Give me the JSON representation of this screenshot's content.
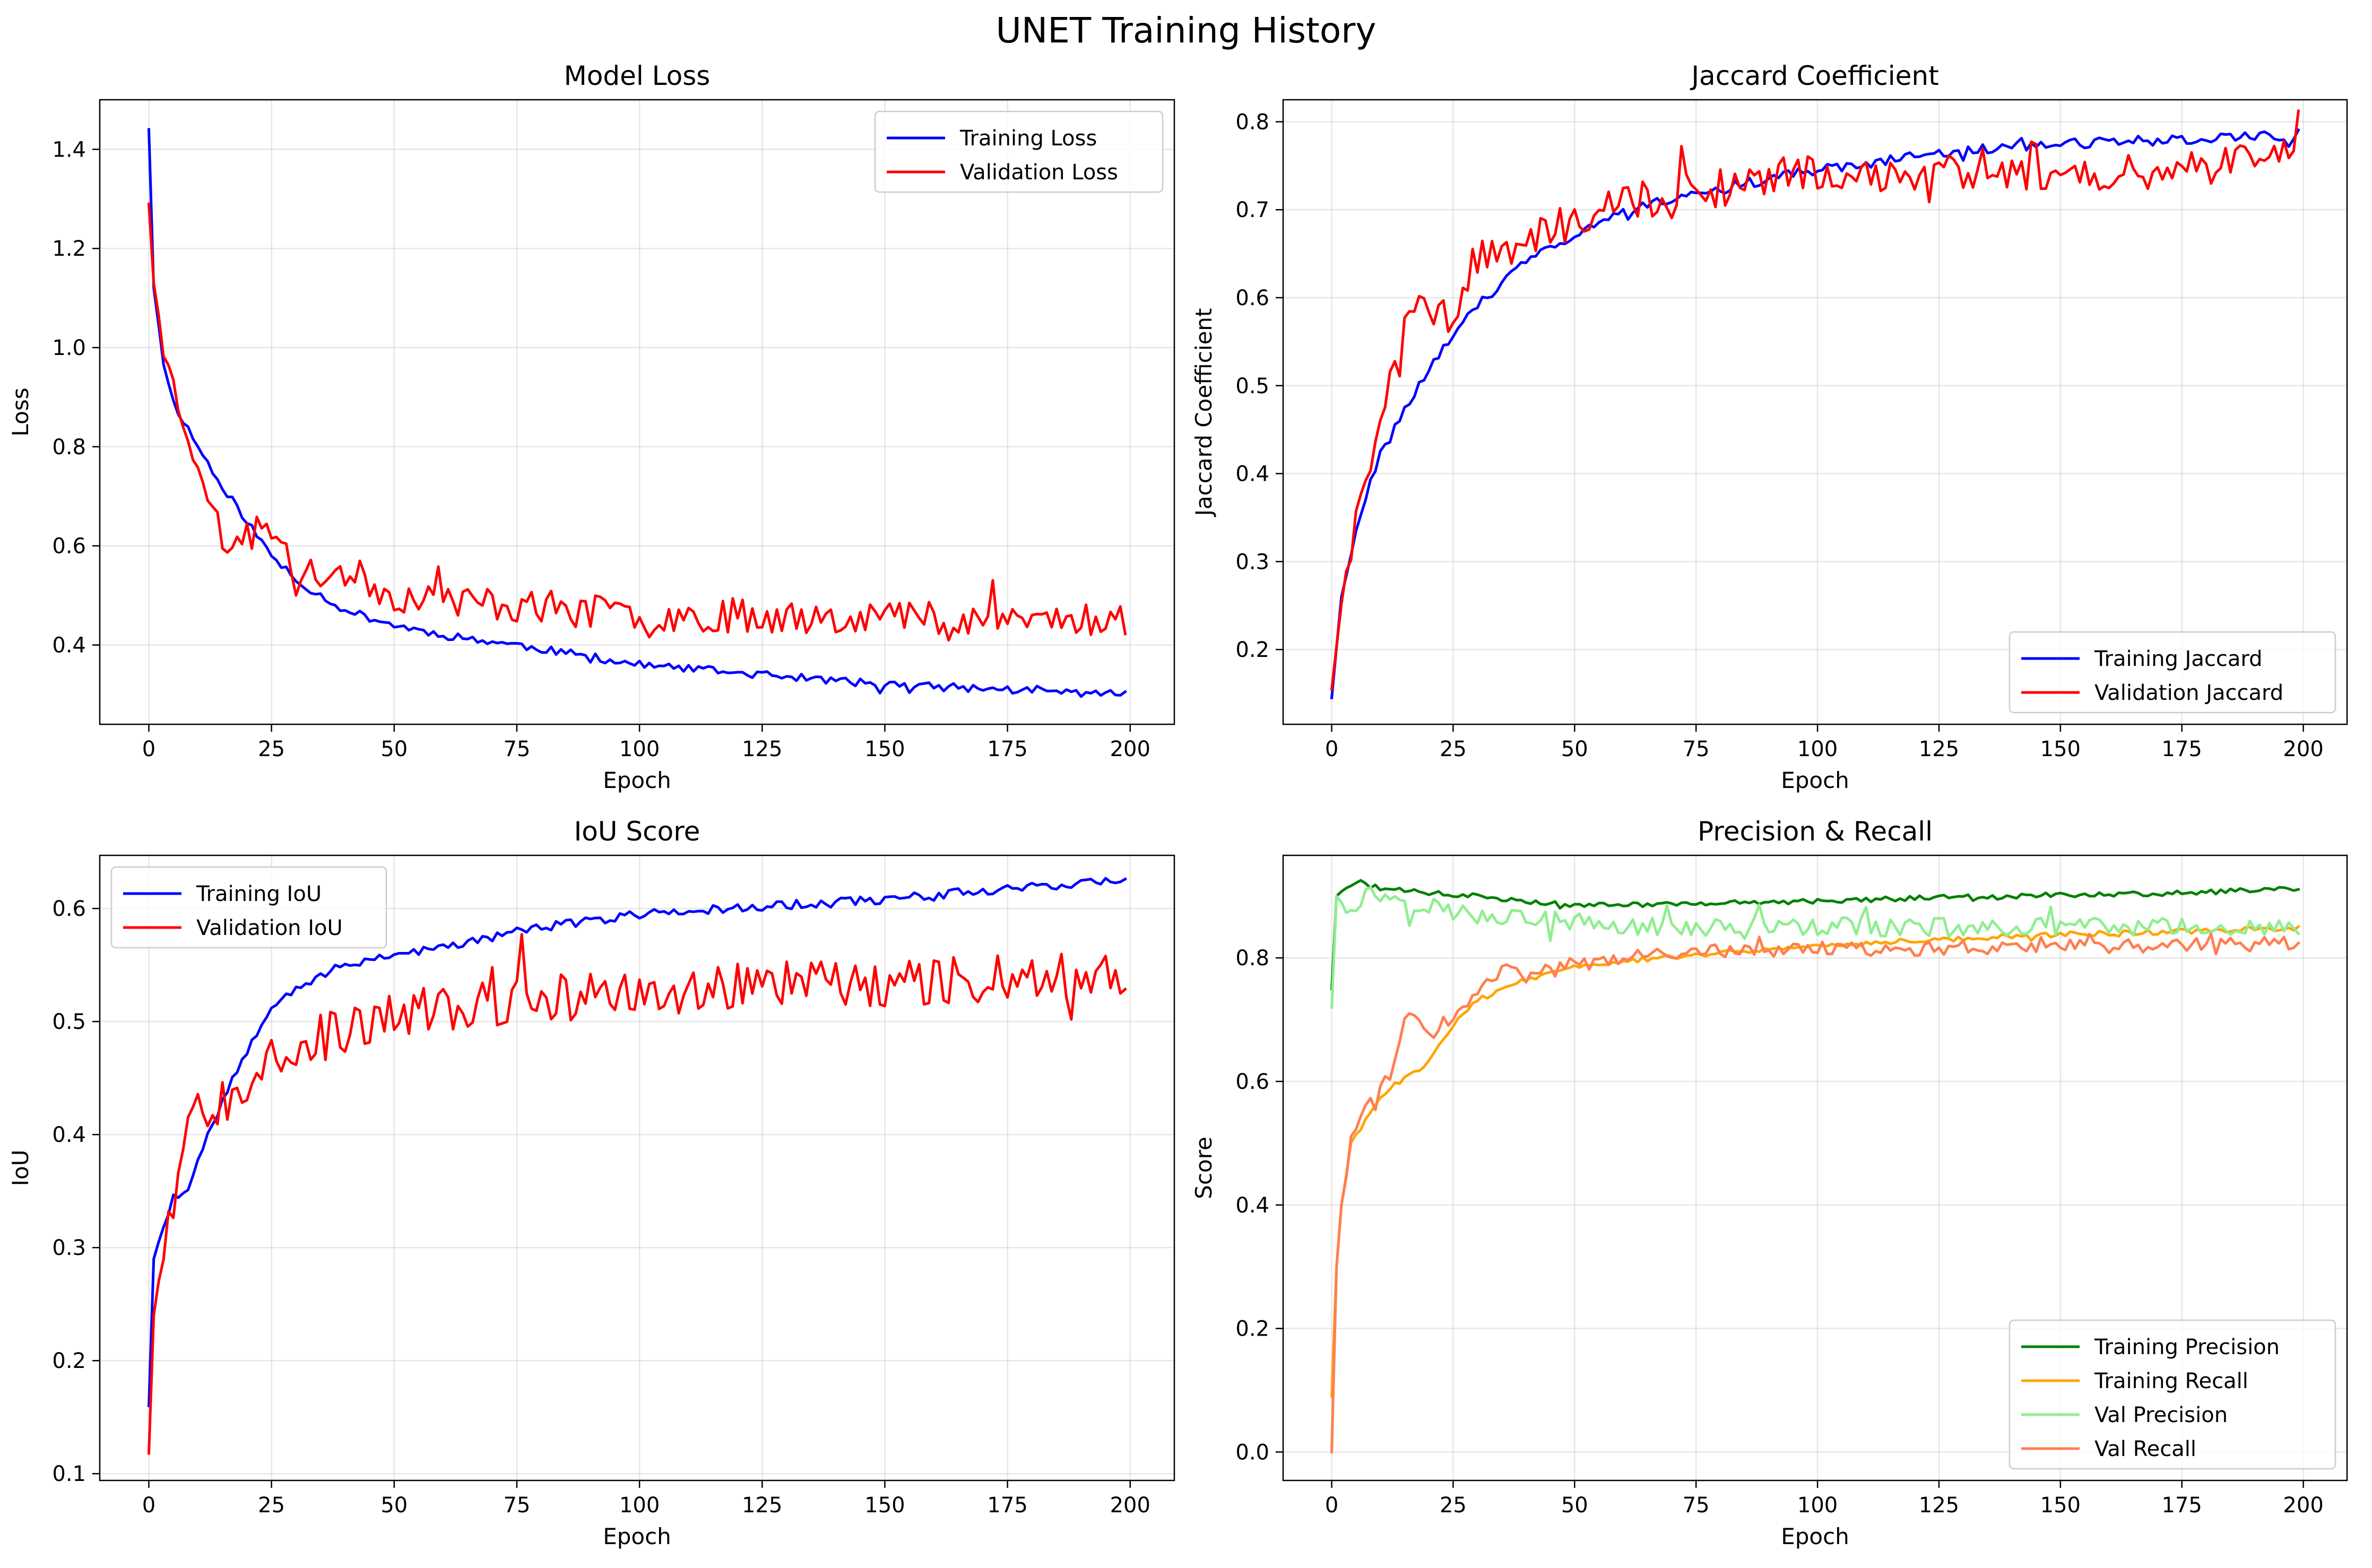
{
  "figure": {
    "suptitle": "UNET Training History"
  },
  "chart_data": [
    {
      "type": "line",
      "title": "Model Loss",
      "xlabel": "Epoch",
      "ylabel": "Loss",
      "xlim": [
        -10,
        209
      ],
      "ylim": [
        0.24,
        1.5
      ],
      "xticks": [
        0,
        25,
        50,
        75,
        100,
        125,
        150,
        175,
        200
      ],
      "xtick_labels": [
        "0",
        "25",
        "50",
        "75",
        "100",
        "125",
        "150",
        "175",
        "200"
      ],
      "yticks": [
        0.4,
        0.6,
        0.8,
        1.0,
        1.2,
        1.4
      ],
      "ytick_labels": [
        "0.4",
        "0.6",
        "0.8",
        "1.0",
        "1.2",
        "1.4"
      ],
      "grid": true,
      "legend_position": "upper-right",
      "series": [
        {
          "name": "Training Loss",
          "color": "#0000ff",
          "gen": {
            "kind": "dec",
            "start": 1.44,
            "end": 0.29,
            "tau": 9,
            "drift": -0.06,
            "noise": 0.008,
            "seed": 11
          },
          "anchors": [
            [
              0,
              1.44
            ],
            [
              1,
              1.12
            ],
            [
              3,
              0.97
            ],
            [
              5,
              0.89
            ],
            [
              10,
              0.8
            ],
            [
              15,
              0.72
            ],
            [
              20,
              0.65
            ],
            [
              25,
              0.58
            ],
            [
              30,
              0.53
            ],
            [
              40,
              0.47
            ],
            [
              50,
              0.44
            ],
            [
              60,
              0.42
            ],
            [
              75,
              0.4
            ],
            [
              100,
              0.36
            ],
            [
              125,
              0.34
            ],
            [
              150,
              0.32
            ],
            [
              175,
              0.31
            ],
            [
              199,
              0.3
            ]
          ]
        },
        {
          "name": "Validation Loss",
          "color": "#ff0000",
          "gen": {
            "kind": "dec",
            "start": 1.29,
            "end": 0.46,
            "tau": 8,
            "drift": 0.0,
            "noise": 0.035,
            "seed": 23
          },
          "anchors": [
            [
              0,
              1.29
            ],
            [
              1,
              1.13
            ],
            [
              3,
              1.0
            ],
            [
              5,
              0.92
            ],
            [
              8,
              0.83
            ],
            [
              12,
              0.72
            ],
            [
              15,
              0.6
            ],
            [
              20,
              0.62
            ],
            [
              25,
              0.64
            ],
            [
              30,
              0.53
            ],
            [
              40,
              0.55
            ],
            [
              50,
              0.5
            ],
            [
              75,
              0.48
            ],
            [
              100,
              0.46
            ],
            [
              150,
              0.46
            ],
            [
              199,
              0.45
            ]
          ]
        }
      ]
    },
    {
      "type": "line",
      "title": "Jaccard Coefficient",
      "xlabel": "Epoch",
      "ylabel": "Jaccard Coefficient",
      "xlim": [
        -10,
        209
      ],
      "ylim": [
        0.115,
        0.825
      ],
      "xticks": [
        0,
        25,
        50,
        75,
        100,
        125,
        150,
        175,
        200
      ],
      "xtick_labels": [
        "0",
        "25",
        "50",
        "75",
        "100",
        "125",
        "150",
        "175",
        "200"
      ],
      "yticks": [
        0.2,
        0.3,
        0.4,
        0.5,
        0.6,
        0.7,
        0.8
      ],
      "ytick_labels": [
        "0.2",
        "0.3",
        "0.4",
        "0.5",
        "0.6",
        "0.7",
        "0.8"
      ],
      "grid": true,
      "legend_position": "lower-right",
      "series": [
        {
          "name": "Training Jaccard",
          "color": "#0000ff",
          "gen": {
            "kind": "inc",
            "start": 0.145,
            "end": 0.79,
            "tau": 28,
            "drift": 0.02,
            "noise": 0.006,
            "seed": 31
          },
          "anchors": [
            [
              0,
              0.145
            ],
            [
              2,
              0.26
            ],
            [
              5,
              0.34
            ],
            [
              10,
              0.42
            ],
            [
              15,
              0.47
            ],
            [
              20,
              0.52
            ],
            [
              25,
              0.56
            ],
            [
              30,
              0.59
            ],
            [
              40,
              0.64
            ],
            [
              50,
              0.67
            ],
            [
              60,
              0.7
            ],
            [
              75,
              0.72
            ],
            [
              100,
              0.745
            ],
            [
              125,
              0.765
            ],
            [
              150,
              0.775
            ],
            [
              175,
              0.78
            ],
            [
              199,
              0.785
            ]
          ]
        },
        {
          "name": "Validation Jaccard",
          "color": "#ff0000",
          "gen": {
            "kind": "inc",
            "start": 0.155,
            "end": 0.75,
            "tau": 26,
            "drift": 0.0,
            "noise": 0.022,
            "seed": 47
          },
          "anchors": [
            [
              0,
              0.155
            ],
            [
              3,
              0.3
            ],
            [
              8,
              0.42
            ],
            [
              12,
              0.48
            ],
            [
              16,
              0.6
            ],
            [
              20,
              0.57
            ],
            [
              25,
              0.58
            ],
            [
              30,
              0.65
            ],
            [
              40,
              0.66
            ],
            [
              50,
              0.69
            ],
            [
              60,
              0.71
            ],
            [
              75,
              0.72
            ],
            [
              100,
              0.745
            ],
            [
              125,
              0.74
            ],
            [
              150,
              0.745
            ],
            [
              175,
              0.745
            ],
            [
              199,
              0.77
            ]
          ]
        }
      ]
    },
    {
      "type": "line",
      "title": "IoU Score",
      "xlabel": "Epoch",
      "ylabel": "IoU",
      "xlim": [
        -10,
        209
      ],
      "ylim": [
        0.094,
        0.647
      ],
      "xticks": [
        0,
        25,
        50,
        75,
        100,
        125,
        150,
        175,
        200
      ],
      "xtick_labels": [
        "0",
        "25",
        "50",
        "75",
        "100",
        "125",
        "150",
        "175",
        "200"
      ],
      "yticks": [
        0.1,
        0.2,
        0.3,
        0.4,
        0.5,
        0.6
      ],
      "ytick_labels": [
        "0.1",
        "0.2",
        "0.3",
        "0.4",
        "0.5",
        "0.6"
      ],
      "grid": true,
      "legend_position": "upper-left",
      "series": [
        {
          "name": "Training IoU",
          "color": "#0000ff",
          "gen": {
            "kind": "inc",
            "start": 0.16,
            "end": 0.625,
            "tau": 30,
            "drift": 0.03,
            "noise": 0.004,
            "seed": 53
          },
          "anchors": [
            [
              0,
              0.16
            ],
            [
              1,
              0.29
            ],
            [
              3,
              0.32
            ],
            [
              5,
              0.345
            ],
            [
              8,
              0.35
            ],
            [
              10,
              0.38
            ],
            [
              15,
              0.43
            ],
            [
              20,
              0.475
            ],
            [
              25,
              0.515
            ],
            [
              30,
              0.53
            ],
            [
              40,
              0.55
            ],
            [
              50,
              0.56
            ],
            [
              60,
              0.565
            ],
            [
              75,
              0.58
            ],
            [
              100,
              0.595
            ],
            [
              125,
              0.602
            ],
            [
              150,
              0.608
            ],
            [
              175,
              0.618
            ],
            [
              199,
              0.625
            ]
          ]
        },
        {
          "name": "Validation IoU",
          "color": "#ff0000",
          "gen": {
            "kind": "inc",
            "start": 0.118,
            "end": 0.54,
            "tau": 20,
            "drift": 0.0,
            "noise": 0.022,
            "seed": 67
          },
          "anchors": [
            [
              0,
              0.118
            ],
            [
              1,
              0.24
            ],
            [
              3,
              0.3
            ],
            [
              6,
              0.37
            ],
            [
              8,
              0.41
            ],
            [
              10,
              0.425
            ],
            [
              15,
              0.43
            ],
            [
              20,
              0.455
            ],
            [
              25,
              0.475
            ],
            [
              30,
              0.48
            ],
            [
              40,
              0.49
            ],
            [
              50,
              0.505
            ],
            [
              60,
              0.51
            ],
            [
              75,
              0.52
            ],
            [
              100,
              0.525
            ],
            [
              125,
              0.53
            ],
            [
              150,
              0.535
            ],
            [
              175,
              0.54
            ],
            [
              199,
              0.545
            ]
          ]
        }
      ]
    },
    {
      "type": "line",
      "title": "Precision & Recall",
      "xlabel": "Epoch",
      "ylabel": "Score",
      "xlim": [
        -10,
        209
      ],
      "ylim": [
        -0.046,
        0.966
      ],
      "xticks": [
        0,
        25,
        50,
        75,
        100,
        125,
        150,
        175,
        200
      ],
      "xtick_labels": [
        "0",
        "25",
        "50",
        "75",
        "100",
        "125",
        "150",
        "175",
        "200"
      ],
      "yticks": [
        0.0,
        0.2,
        0.4,
        0.6,
        0.8
      ],
      "ytick_labels": [
        "0.0",
        "0.2",
        "0.4",
        "0.6",
        "0.8"
      ],
      "grid": true,
      "legend_position": "lower-right",
      "series": [
        {
          "name": "Training Precision",
          "color": "#008000",
          "gen": {
            "kind": "flat",
            "start": 0.75,
            "end": 0.9,
            "tau": 1,
            "drift": 0.0,
            "noise": 0.004,
            "seed": 71
          },
          "anchors": [
            [
              0,
              0.75
            ],
            [
              1,
              0.9
            ],
            [
              3,
              0.915
            ],
            [
              6,
              0.922
            ],
            [
              10,
              0.912
            ],
            [
              20,
              0.905
            ],
            [
              30,
              0.9
            ],
            [
              50,
              0.885
            ],
            [
              75,
              0.888
            ],
            [
              100,
              0.892
            ],
            [
              125,
              0.898
            ],
            [
              150,
              0.902
            ],
            [
              175,
              0.905
            ],
            [
              199,
              0.912
            ]
          ]
        },
        {
          "name": "Training Recall",
          "color": "#ffa500",
          "gen": {
            "kind": "inc",
            "start": 0.09,
            "end": 0.85,
            "tau": 18,
            "drift": 0.0,
            "noise": 0.004,
            "seed": 83
          },
          "anchors": [
            [
              0,
              0.09
            ],
            [
              1,
              0.3
            ],
            [
              2,
              0.4
            ],
            [
              4,
              0.5
            ],
            [
              8,
              0.55
            ],
            [
              12,
              0.59
            ],
            [
              16,
              0.61
            ],
            [
              20,
              0.63
            ],
            [
              25,
              0.7
            ],
            [
              30,
              0.73
            ],
            [
              40,
              0.765
            ],
            [
              50,
              0.785
            ],
            [
              60,
              0.795
            ],
            [
              75,
              0.805
            ],
            [
              100,
              0.82
            ],
            [
              125,
              0.83
            ],
            [
              150,
              0.838
            ],
            [
              175,
              0.843
            ],
            [
              199,
              0.848
            ]
          ]
        },
        {
          "name": "Val Precision",
          "color": "#90ee90",
          "gen": {
            "kind": "flat",
            "start": 0.72,
            "end": 0.86,
            "tau": 1,
            "drift": 0.0,
            "noise": 0.015,
            "seed": 97
          },
          "anchors": [
            [
              0,
              0.72
            ],
            [
              1,
              0.9
            ],
            [
              3,
              0.88
            ],
            [
              8,
              0.905
            ],
            [
              15,
              0.895
            ],
            [
              25,
              0.875
            ],
            [
              40,
              0.865
            ],
            [
              60,
              0.85
            ],
            [
              100,
              0.85
            ],
            [
              150,
              0.85
            ],
            [
              199,
              0.85
            ]
          ]
        },
        {
          "name": "Val Recall",
          "color": "#ff7f50",
          "gen": {
            "kind": "inc",
            "start": 0.0,
            "end": 0.82,
            "tau": 16,
            "drift": 0.0,
            "noise": 0.012,
            "seed": 101
          },
          "anchors": [
            [
              0,
              0.0
            ],
            [
              1,
              0.3
            ],
            [
              2,
              0.4
            ],
            [
              4,
              0.5
            ],
            [
              8,
              0.57
            ],
            [
              12,
              0.61
            ],
            [
              16,
              0.72
            ],
            [
              20,
              0.67
            ],
            [
              25,
              0.71
            ],
            [
              30,
              0.75
            ],
            [
              35,
              0.78
            ],
            [
              40,
              0.77
            ],
            [
              50,
              0.79
            ],
            [
              60,
              0.8
            ],
            [
              75,
              0.81
            ],
            [
              100,
              0.815
            ],
            [
              125,
              0.815
            ],
            [
              150,
              0.82
            ],
            [
              175,
              0.82
            ],
            [
              199,
              0.825
            ]
          ]
        }
      ]
    }
  ]
}
